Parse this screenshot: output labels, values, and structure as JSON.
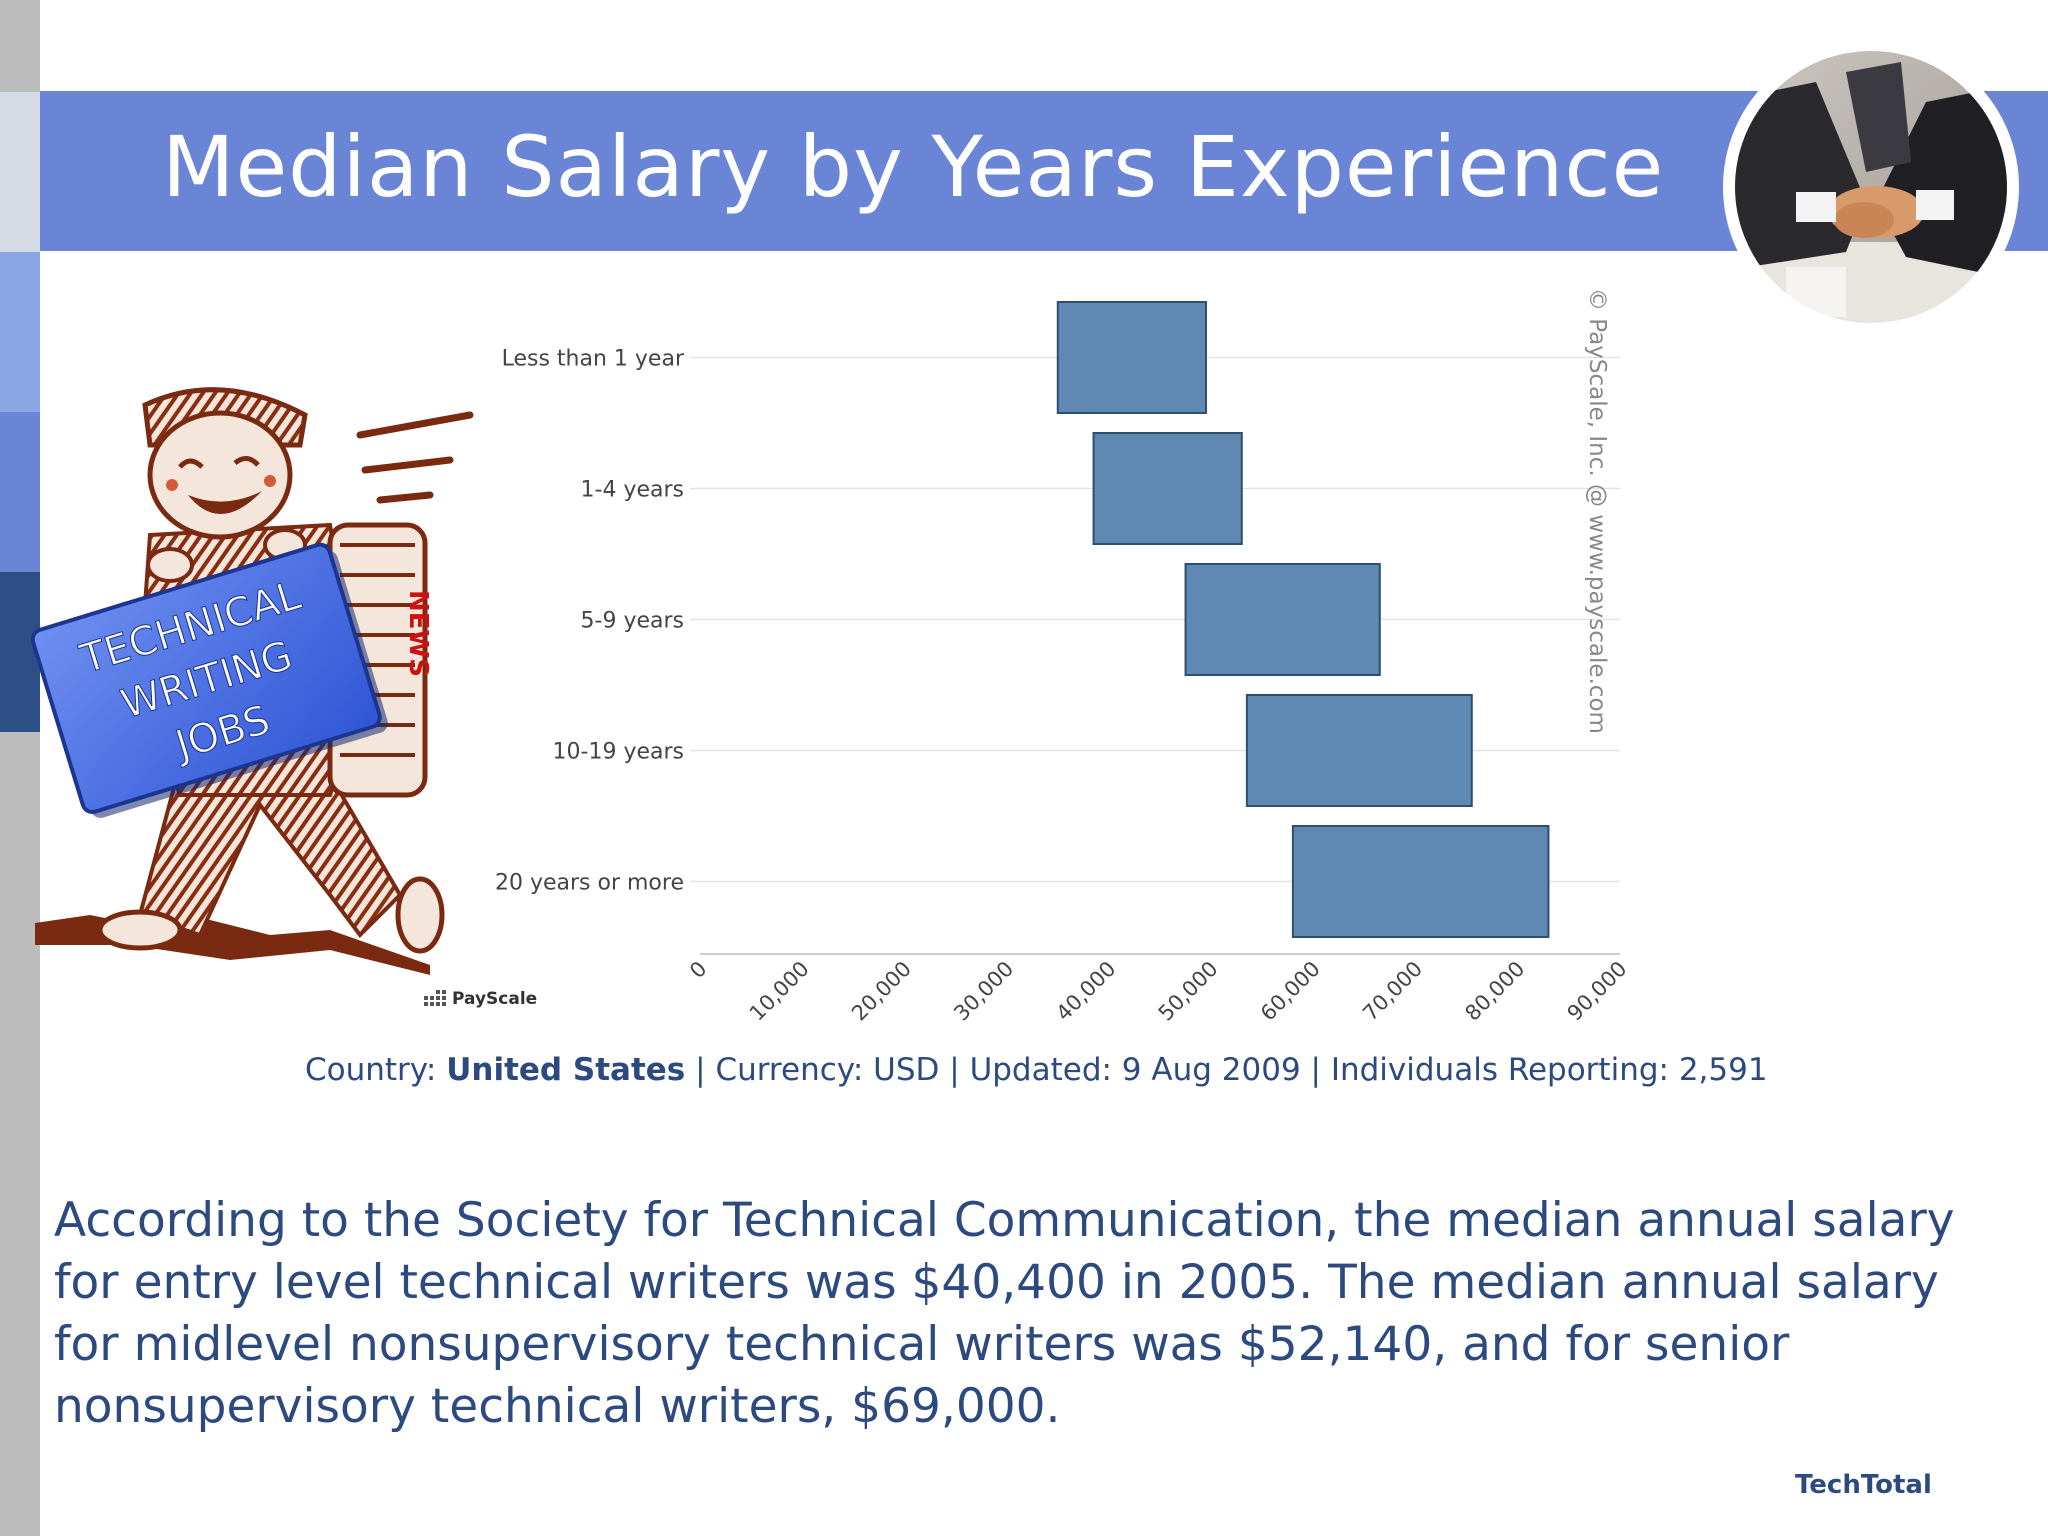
{
  "slide": {
    "title": "Median Salary by Years Experience",
    "footer_brand": "TechTotal",
    "body_text": "According to the Society for Technical Communication, the median annual salary for entry level technical writers was $40,400 in 2005. The median annual salary for midlevel nonsupervisory technical writers was $52,140, and for senior nonsupervisory technical writers, $69,000."
  },
  "meta": {
    "country_label": "Country:",
    "country_value": "United States",
    "currency": "Currency: USD",
    "updated": "Updated: 9 Aug 2009",
    "individuals": "Individuals Reporting: 2,591",
    "separator": "|"
  },
  "clipart": {
    "sign_lines": [
      "TECHNICAL",
      "WRITING",
      "JOBS"
    ],
    "bundle_label": "NEWS"
  },
  "logo": {
    "text": "PayScale"
  },
  "colors": {
    "title_band": "#6a85d6",
    "bar_fill": "#5f89b2",
    "text_blue": "#2c4a80",
    "strip_gray": "#bcbcbc",
    "strip_light": "#d7dbe6",
    "strip_mid": "#8aa6e3",
    "strip_blue": "#6a85d6",
    "strip_dark": "#2e4f86"
  },
  "chart_data": {
    "type": "bar",
    "orientation": "horizontal-range",
    "title": "",
    "xlabel": "",
    "ylabel": "",
    "credit": "© PayScale, Inc. @ www.payscale.com",
    "categories": [
      "Less than 1 year",
      "1-4 years",
      "5-9 years",
      "10-19 years",
      "20 years or more"
    ],
    "series": [
      {
        "ranges": [
          [
            35000,
            49500
          ],
          [
            38500,
            53000
          ],
          [
            47500,
            66500
          ],
          [
            53500,
            75500
          ],
          [
            58000,
            83000
          ]
        ]
      }
    ],
    "x_ticks": [
      0,
      10000,
      20000,
      30000,
      40000,
      50000,
      60000,
      70000,
      80000,
      90000
    ],
    "x_tick_labels": [
      "0",
      "10,000",
      "20,000",
      "30,000",
      "40,000",
      "50,000",
      "60,000",
      "70,000",
      "80,000",
      "90,000"
    ],
    "xlim": [
      0,
      90000
    ],
    "grid": true
  }
}
